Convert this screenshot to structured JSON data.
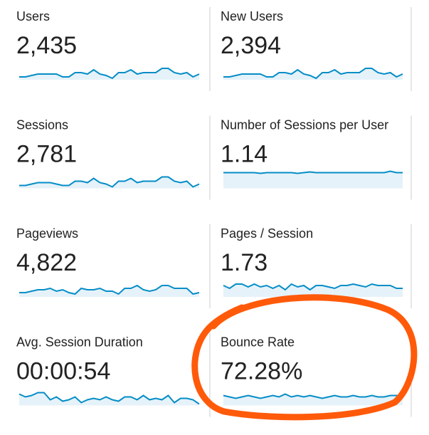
{
  "metrics": [
    {
      "label": "Users",
      "value": "2,435",
      "sparkline": [
        2,
        2,
        3,
        4,
        4,
        4,
        4,
        2,
        2,
        5,
        5,
        4,
        7,
        4,
        3,
        1,
        5,
        5,
        7,
        4,
        5,
        5,
        5,
        8,
        8,
        5,
        4,
        5,
        2,
        4
      ]
    },
    {
      "label": "New Users",
      "value": "2,394",
      "sparkline": [
        2,
        2,
        3,
        4,
        4,
        4,
        4,
        2,
        2,
        5,
        5,
        4,
        7,
        4,
        3,
        1,
        5,
        5,
        7,
        4,
        5,
        5,
        5,
        8,
        8,
        5,
        4,
        5,
        2,
        4
      ]
    },
    {
      "label": "Sessions",
      "value": "2,781",
      "sparkline": [
        2,
        2,
        3,
        4,
        4,
        4,
        3,
        2,
        2,
        5,
        5,
        4,
        7,
        4,
        3,
        1,
        5,
        5,
        7,
        4,
        5,
        5,
        5,
        8,
        8,
        5,
        4,
        5,
        1,
        3
      ]
    },
    {
      "label": "Number of Sessions per User",
      "value": "1.14",
      "sparkline": [
        11,
        11,
        11,
        11,
        11,
        11,
        10.5,
        11,
        11,
        11,
        11,
        11,
        10.5,
        11,
        11.5,
        11,
        11,
        11,
        11,
        11,
        11,
        11,
        11,
        11,
        11,
        11,
        11,
        12,
        11,
        11
      ]
    },
    {
      "label": "Pageviews",
      "value": "4,822",
      "sparkline": [
        3,
        3,
        4,
        5,
        5,
        6,
        4,
        5,
        3,
        2,
        6,
        5,
        5,
        6,
        4,
        4,
        2,
        6,
        6,
        8,
        5,
        4,
        5,
        8,
        8,
        6,
        6,
        6,
        2,
        3
      ]
    },
    {
      "label": "Pages / Session",
      "value": "1.73",
      "sparkline": [
        8,
        6,
        9,
        9,
        7,
        9,
        7,
        8,
        6,
        8,
        5,
        9,
        7,
        8,
        5,
        8,
        8,
        7,
        6,
        8,
        8,
        9,
        8,
        7,
        9,
        8,
        8,
        8,
        6,
        6
      ]
    },
    {
      "label": "Avg. Session Duration",
      "value": "00:00:54",
      "sparkline": [
        8,
        6,
        7,
        9,
        9,
        4,
        6,
        3,
        4,
        6,
        2,
        4,
        5,
        4,
        6,
        4,
        3,
        6,
        6,
        4,
        7,
        4,
        5,
        4,
        7,
        2,
        5,
        5,
        4,
        1
      ]
    },
    {
      "label": "Bounce Rate",
      "value": "72.28%",
      "sparkline": [
        7,
        6,
        5,
        6,
        7,
        6,
        5,
        6,
        7,
        6,
        8,
        6,
        7,
        6,
        7,
        6,
        5,
        6,
        7,
        6,
        6,
        7,
        6,
        6,
        7,
        6,
        6,
        7,
        7,
        7
      ]
    }
  ]
}
